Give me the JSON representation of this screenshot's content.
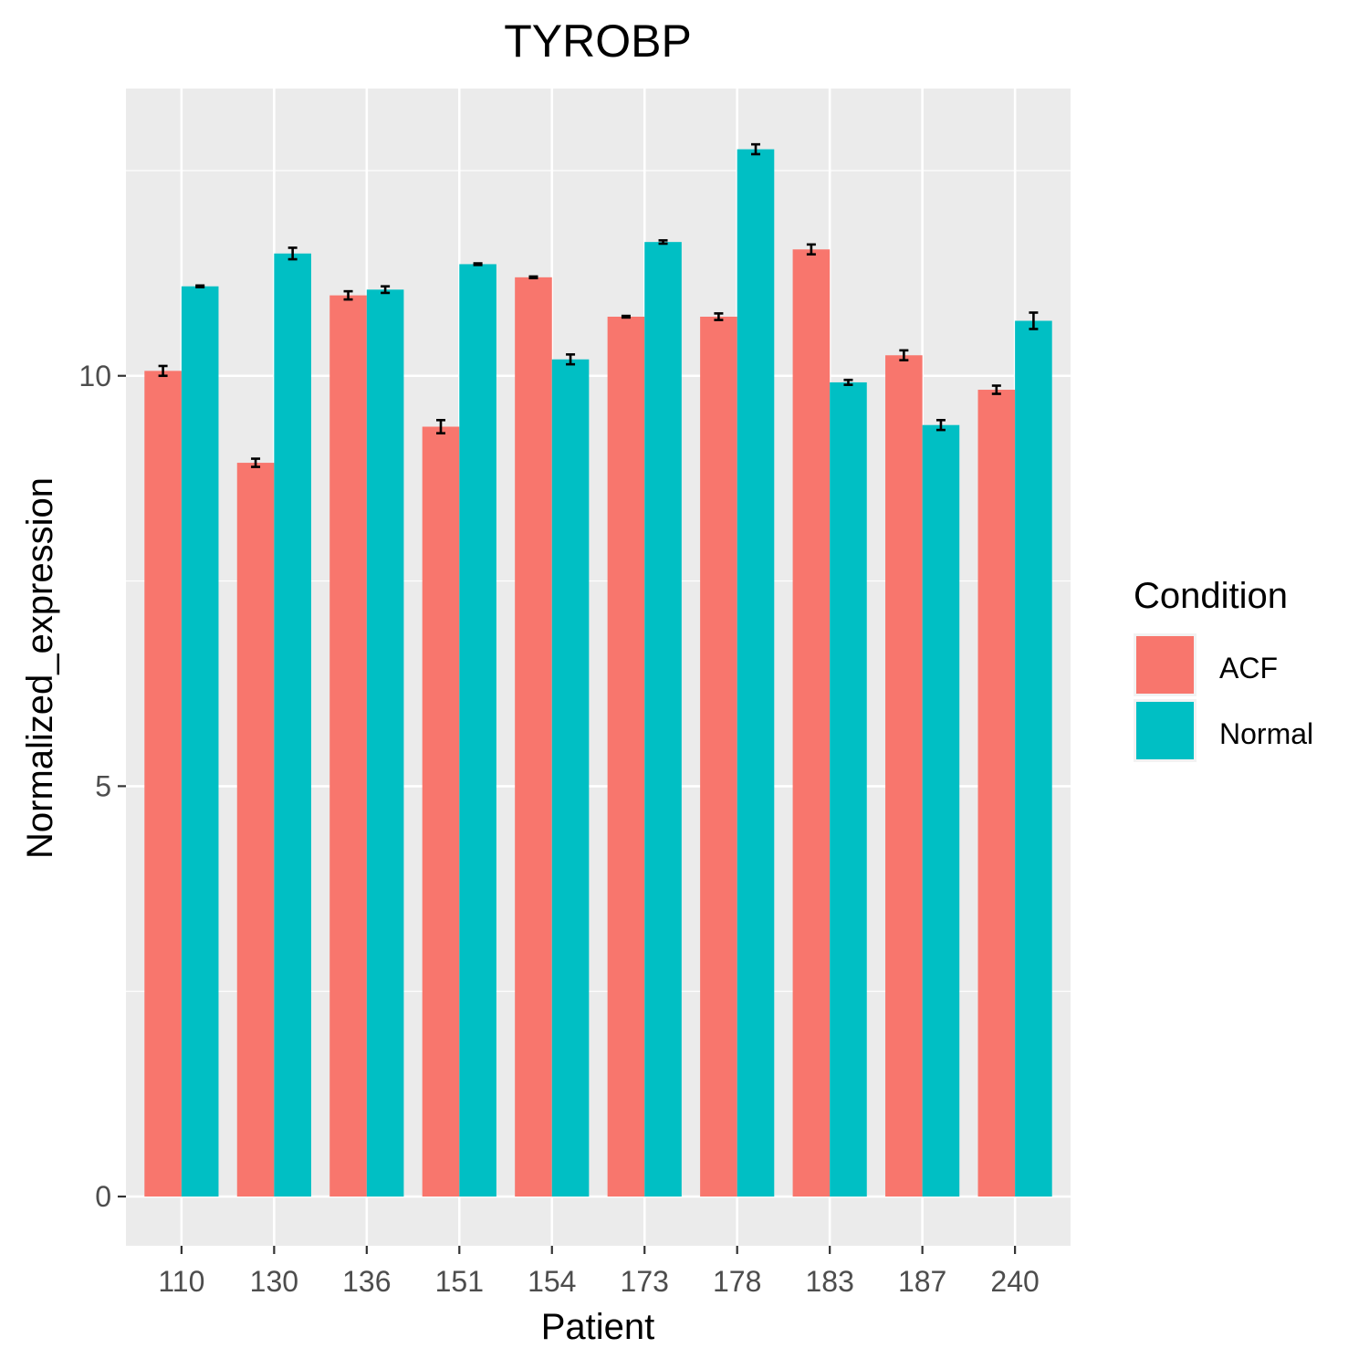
{
  "chart_data": {
    "type": "bar",
    "title": "TYROBP",
    "xlabel": "Patient",
    "ylabel": "Normalized_expression",
    "categories": [
      "110",
      "130",
      "136",
      "151",
      "154",
      "173",
      "178",
      "183",
      "187",
      "240"
    ],
    "series": [
      {
        "name": "ACF",
        "color": "#F8766D",
        "values": [
          10.06,
          8.94,
          10.98,
          9.38,
          11.2,
          10.72,
          10.72,
          11.54,
          10.25,
          9.83
        ],
        "error": [
          0.06,
          0.05,
          0.05,
          0.08,
          0.01,
          0.01,
          0.04,
          0.06,
          0.06,
          0.05
        ]
      },
      {
        "name": "Normal",
        "color": "#00BFC4",
        "values": [
          11.09,
          11.49,
          11.05,
          11.36,
          10.2,
          11.63,
          12.76,
          9.92,
          9.4,
          10.67
        ],
        "error": [
          0.01,
          0.07,
          0.04,
          0.01,
          0.06,
          0.02,
          0.06,
          0.03,
          0.06,
          0.1
        ]
      }
    ],
    "yticks": [
      0,
      5,
      10
    ],
    "ylim": [
      -0.6,
      13.5
    ],
    "grid": true,
    "legend": {
      "title": "Condition",
      "position": "right"
    },
    "panel_background": "#EBEBEB"
  }
}
